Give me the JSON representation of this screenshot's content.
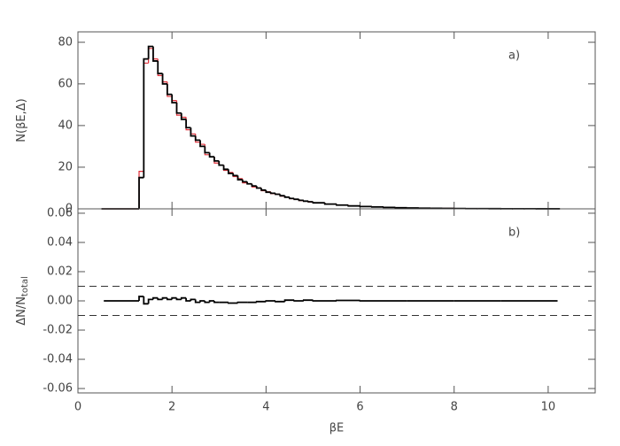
{
  "chart_data": [
    {
      "type": "histogram",
      "label": "a)",
      "ylabel": "N(βE,Δ)",
      "bins": [
        0.5,
        1.3,
        1.4,
        1.5,
        1.6,
        1.7,
        1.8,
        1.9,
        2.0,
        2.1,
        2.2,
        2.3,
        2.4,
        2.5,
        2.6,
        2.7,
        2.8,
        2.9,
        3.0,
        3.1,
        3.2,
        3.3,
        3.4,
        3.5,
        3.6,
        3.7,
        3.8,
        3.9,
        4.0,
        4.1,
        4.2,
        4.3,
        4.4,
        4.5,
        4.6,
        4.7,
        4.8,
        4.9,
        5.0,
        5.25,
        5.5,
        5.75,
        6.0,
        6.25,
        6.5,
        6.75,
        7.0,
        7.25,
        7.5,
        7.75,
        8.0,
        8.25,
        8.5,
        8.75,
        9.0,
        9.25,
        9.5,
        9.75,
        10.0,
        10.25
      ],
      "series": [
        {
          "color": "#e0303a",
          "values": [
            0,
            18,
            70,
            77,
            72,
            64,
            61,
            54,
            52,
            45,
            44,
            38,
            36,
            32,
            31,
            26,
            25,
            22,
            21,
            18.5,
            17.5,
            15.5,
            14.5,
            12.5,
            12,
            10.5,
            10,
            8.7,
            8.2,
            7.3,
            7,
            6.1,
            5.6,
            4.9,
            4.6,
            4,
            3.7,
            3.3,
            2.9,
            2.3,
            1.8,
            1.4,
            1.1,
            0.9,
            0.7,
            0.5,
            0.4,
            0.3,
            0.25,
            0.2,
            0.15,
            0.12,
            0.1,
            0.08,
            0.06,
            0.05,
            0.04,
            0.03,
            0.02
          ]
        },
        {
          "color": "#000000",
          "values": [
            0,
            15,
            72,
            78,
            71,
            65,
            60,
            55,
            51,
            46,
            43,
            39,
            35,
            33,
            30,
            27,
            25,
            23,
            21,
            19,
            17,
            16,
            14,
            13,
            12,
            11,
            10,
            9,
            8,
            7.5,
            7,
            6.3,
            5.6,
            5,
            4.6,
            4.1,
            3.7,
            3.4,
            2.9,
            2.3,
            1.8,
            1.4,
            1.1,
            0.9,
            0.7,
            0.5,
            0.4,
            0.3,
            0.25,
            0.2,
            0.15,
            0.12,
            0.1,
            0.08,
            0.06,
            0.05,
            0.04,
            0.03,
            0.02
          ]
        }
      ],
      "xlim": [
        0,
        11
      ],
      "ylim": [
        0,
        85
      ],
      "yticks": [
        0,
        20,
        40,
        60,
        80
      ]
    },
    {
      "type": "histogram",
      "label": "b)",
      "ylabel": "ΔN/N",
      "ylabel_sub": "total",
      "xlabel": "βE",
      "bins": [
        0.55,
        1.3,
        1.4,
        1.5,
        1.6,
        1.7,
        1.8,
        1.9,
        2.0,
        2.1,
        2.2,
        2.3,
        2.4,
        2.5,
        2.6,
        2.7,
        2.8,
        2.9,
        3.0,
        3.2,
        3.4,
        3.6,
        3.8,
        4.0,
        4.2,
        4.4,
        4.6,
        4.8,
        5.0,
        5.5,
        6.0,
        7.0,
        8.0,
        9.0,
        10.2
      ],
      "series": [
        {
          "color": "#000000",
          "values": [
            0,
            0.003,
            -0.002,
            0.001,
            0.002,
            0.001,
            0.002,
            0.001,
            0.002,
            0.001,
            0.002,
            0,
            0.001,
            -0.001,
            0,
            -0.001,
            0,
            -0.001,
            -0.001,
            -0.0015,
            -0.001,
            -0.001,
            -0.0005,
            0,
            -0.0005,
            0.0005,
            0,
            0.0005,
            0,
            0.0003,
            0,
            0,
            0,
            0
          ]
        }
      ],
      "hlines": [
        0.01,
        -0.01
      ],
      "xlim": [
        0,
        11
      ],
      "ylim": [
        -0.063,
        0.063
      ],
      "xticks": [
        0,
        2,
        4,
        6,
        8,
        10
      ],
      "yticks": [
        -0.06,
        -0.04,
        -0.02,
        {
          "value": 0,
          "label": "0.00"
        },
        0.02,
        0.04,
        0.06
      ]
    }
  ]
}
